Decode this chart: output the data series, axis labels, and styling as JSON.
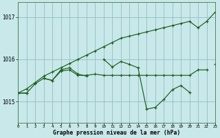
{
  "xlabel": "Graphe pression niveau de la mer (hPa)",
  "background_color": "#c8e8ea",
  "grid_color": "#90c0c0",
  "line_color": "#1a5c1a",
  "x_values": [
    0,
    1,
    2,
    3,
    4,
    5,
    6,
    7,
    8,
    9,
    10,
    11,
    12,
    13,
    14,
    15,
    16,
    17,
    18,
    19,
    20,
    21,
    22,
    23
  ],
  "series1_upper": [
    1015.2,
    1015.3,
    1015.45,
    1015.6,
    1015.7,
    1015.8,
    1015.9,
    1016.0,
    1016.1,
    1016.2,
    1016.3,
    1016.4,
    1016.5,
    1016.55,
    1016.6,
    1016.65,
    1016.7,
    1016.75,
    1016.8,
    1016.85,
    1016.9,
    1016.75,
    1016.9,
    1017.12
  ],
  "series2_zigzag": [
    1015.2,
    1015.2,
    null,
    1015.55,
    1015.5,
    1015.75,
    1015.8,
    1015.65,
    1015.6,
    null,
    1016.0,
    1015.82,
    1015.95,
    1015.88,
    1015.8,
    1014.82,
    1014.86,
    1015.05,
    1015.28,
    1015.38,
    1015.22,
    null,
    null,
    1015.88
  ],
  "series3_flat": [
    1015.2,
    1015.2,
    1015.42,
    1015.55,
    1015.5,
    1015.72,
    1015.75,
    1015.62,
    1015.62,
    1015.65,
    1015.62,
    1015.62,
    1015.62,
    1015.62,
    1015.62,
    1015.62,
    1015.62,
    1015.62,
    1015.62,
    1015.62,
    1015.62,
    1015.75,
    1015.75,
    null
  ],
  "ylim": [
    1014.5,
    1017.35
  ],
  "yticks": [
    1015,
    1016,
    1017
  ],
  "xlim": [
    0,
    23
  ]
}
